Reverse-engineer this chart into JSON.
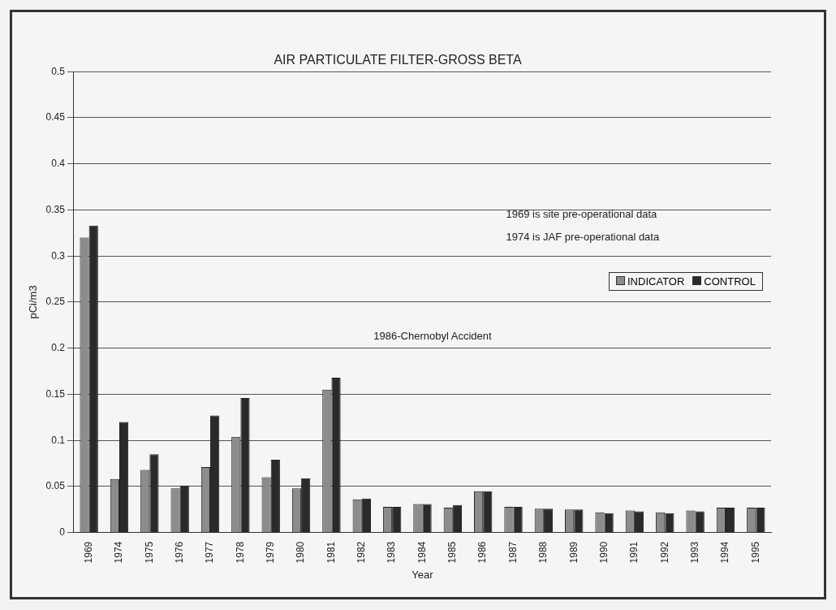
{
  "chart_data": {
    "type": "bar",
    "title": "AIR PARTICULATE FILTER-GROSS BETA",
    "xlabel": "Year",
    "ylabel": "pCi/m3",
    "categories": [
      "1969",
      "1974",
      "1975",
      "1976",
      "1977",
      "1978",
      "1979",
      "1980",
      "1981",
      "1982",
      "1983",
      "1984",
      "1985",
      "1986",
      "1987",
      "1988",
      "1989",
      "1990",
      "1991",
      "1992",
      "1993",
      "1994",
      "1995"
    ],
    "series": [
      {
        "name": "INDICATOR",
        "color": "#8c8c8c",
        "values": [
          0.32,
          0.058,
          0.068,
          0.048,
          0.071,
          0.104,
          0.06,
          0.048,
          0.155,
          0.036,
          0.028,
          0.031,
          0.027,
          0.045,
          0.028,
          0.026,
          0.025,
          0.022,
          0.024,
          0.022,
          0.024,
          0.027,
          0.027
        ]
      },
      {
        "name": "CONTROL",
        "color": "#2a2a2a",
        "values": [
          0.333,
          0.12,
          0.085,
          0.051,
          0.127,
          0.146,
          0.079,
          0.059,
          0.168,
          0.037,
          0.028,
          0.031,
          0.03,
          0.045,
          0.028,
          0.026,
          0.025,
          0.021,
          0.023,
          0.021,
          0.023,
          0.027,
          0.027
        ]
      }
    ],
    "ylim": [
      0,
      0.5
    ],
    "yticks": [
      0,
      0.05,
      0.1,
      0.15,
      0.2,
      0.25,
      0.3,
      0.35,
      0.4,
      0.45,
      0.5
    ],
    "grid": "y",
    "legend": "right",
    "annotations": [
      "1969 is site pre-operational data",
      "1974 is JAF pre-operational data",
      "1986-Chernobyl Accident"
    ]
  }
}
